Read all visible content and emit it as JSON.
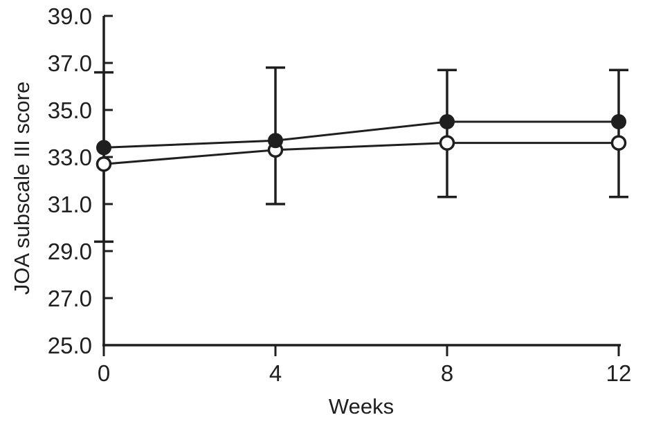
{
  "figure": {
    "background": "#ffffff",
    "ink_color": "#1f1f1f"
  },
  "chart_data": {
    "type": "line",
    "title": "",
    "xlabel": "Weeks",
    "ylabel": "JOA subscale III score",
    "x": [
      0,
      4,
      8,
      12
    ],
    "xtick_labels": [
      "0",
      "4",
      "8",
      "12"
    ],
    "ytick_values": [
      25,
      27,
      29,
      31,
      33,
      35,
      37,
      39
    ],
    "ytick_labels": [
      "25.0",
      "27.0",
      "29.0",
      "31.0",
      "33.0",
      "35.0",
      "37.0",
      "39.0"
    ],
    "xlim": [
      0,
      12
    ],
    "ylim": [
      25,
      39
    ],
    "grid": false,
    "legend": "none",
    "series": [
      {
        "name": "filled-circle-series",
        "marker": "filled-circle",
        "values": [
          33.4,
          33.7,
          34.5,
          34.5
        ],
        "error_caps_upper": [
          36.6,
          36.8,
          36.7,
          36.7
        ]
      },
      {
        "name": "open-circle-series",
        "marker": "open-circle",
        "values": [
          32.7,
          33.3,
          33.6,
          33.6
        ],
        "error_caps_lower": [
          29.4,
          31.0,
          31.3,
          31.3
        ]
      }
    ]
  }
}
